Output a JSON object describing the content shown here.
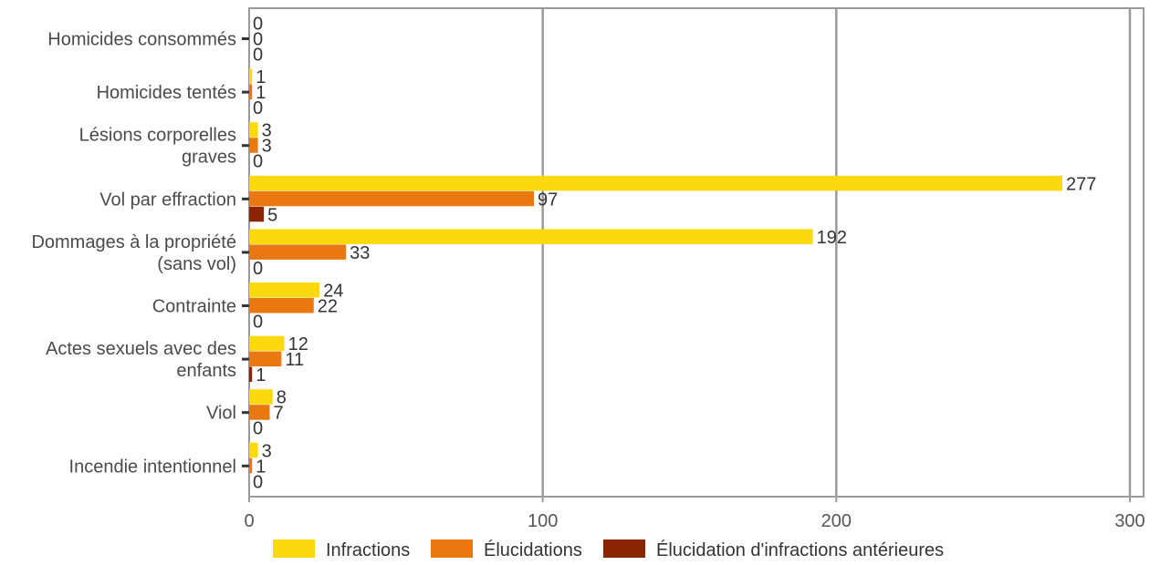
{
  "chart_data": {
    "type": "bar",
    "orientation": "horizontal",
    "categories": [
      [
        "Homicides consommés"
      ],
      [
        "Homicides tentés"
      ],
      [
        "Lésions corporelles",
        "graves"
      ],
      [
        "Vol par effraction"
      ],
      [
        "Dommages à la propriété",
        "(sans vol)"
      ],
      [
        "Contrainte"
      ],
      [
        "Actes sexuels avec des",
        "enfants"
      ],
      [
        "Viol"
      ],
      [
        "Incendie intentionnel"
      ]
    ],
    "series": [
      {
        "name": "Infractions",
        "color": "#fcd90f",
        "values": [
          0,
          1,
          3,
          277,
          192,
          24,
          12,
          8,
          3
        ]
      },
      {
        "name": "Élucidations",
        "color": "#e8780f",
        "values": [
          0,
          1,
          3,
          97,
          33,
          22,
          11,
          7,
          1
        ]
      },
      {
        "name": "Élucidation d'infractions antérieures",
        "color": "#8b2404",
        "values": [
          0,
          0,
          0,
          5,
          0,
          0,
          1,
          0,
          0
        ]
      }
    ],
    "xlim": [
      0,
      300
    ],
    "xticks": [
      0,
      100,
      200,
      300
    ],
    "grid": "vertical",
    "legend_position": "bottom"
  }
}
